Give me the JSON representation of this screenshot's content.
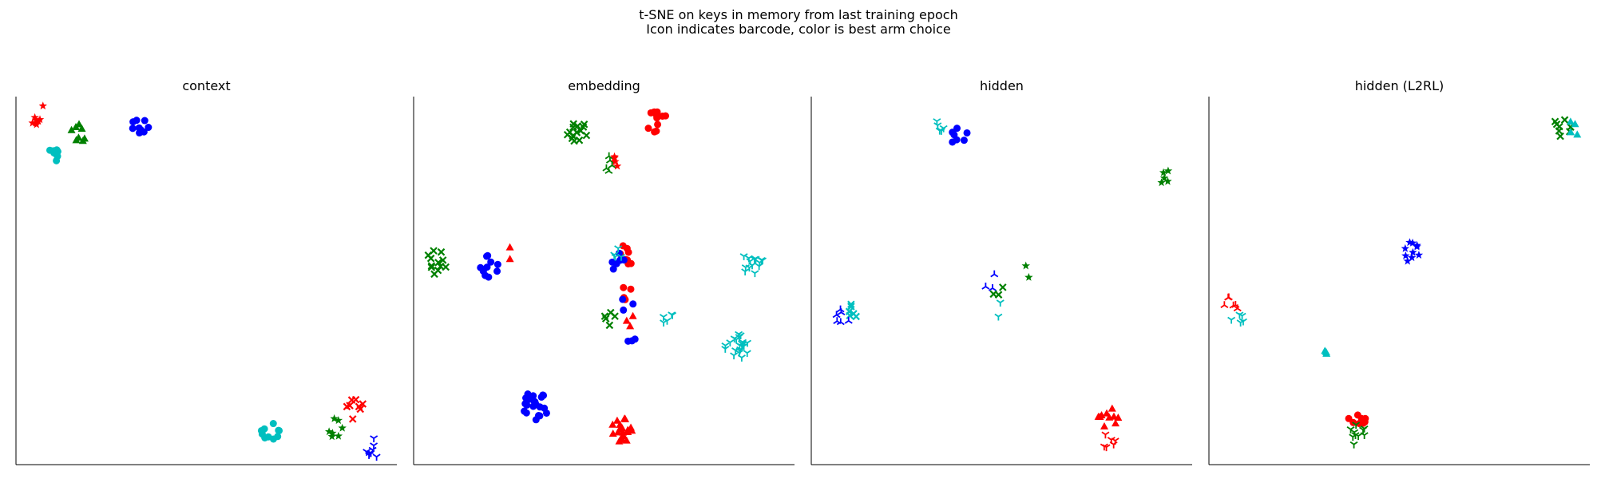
{
  "figure": {
    "title_lines": [
      "t-SNE on keys in memory from last training epoch",
      "Icon indicates barcode, color is best arm choice"
    ]
  },
  "colors": {
    "red": "#ff0000",
    "green": "#008000",
    "blue": "#0000ff",
    "cyan": "#00bfbf"
  },
  "chart_data": [
    {
      "type": "scatter",
      "title": "context",
      "xlabel": "",
      "ylabel": "",
      "xticks": "none",
      "yticks": "none",
      "xlim": [
        0,
        100
      ],
      "ylim": [
        0,
        100
      ],
      "clusters": [
        {
          "x": 6,
          "y": 95,
          "color": "red",
          "marker": "star",
          "count": 8
        },
        {
          "x": 16,
          "y": 90,
          "color": "green",
          "marker": "triangle",
          "count": 8
        },
        {
          "x": 33,
          "y": 92,
          "color": "blue",
          "marker": "circle",
          "count": 10
        },
        {
          "x": 11,
          "y": 84,
          "color": "cyan",
          "marker": "circle",
          "count": 8
        },
        {
          "x": 67,
          "y": 9,
          "color": "cyan",
          "marker": "circle",
          "count": 10
        },
        {
          "x": 84,
          "y": 10,
          "color": "green",
          "marker": "star",
          "count": 7
        },
        {
          "x": 89,
          "y": 15,
          "color": "red",
          "marker": "x",
          "count": 8
        },
        {
          "x": 94,
          "y": 5,
          "color": "blue",
          "marker": "tri_down",
          "count": 8
        }
      ]
    },
    {
      "type": "scatter",
      "title": "embedding",
      "xlabel": "",
      "ylabel": "",
      "xticks": "none",
      "yticks": "none",
      "xlim": [
        0,
        100
      ],
      "ylim": [
        0,
        100
      ],
      "clusters": [
        {
          "x": 43,
          "y": 90,
          "color": "green",
          "marker": "x",
          "count": 14
        },
        {
          "x": 51,
          "y": 82,
          "color": "green",
          "marker": "tri_up",
          "count": 5
        },
        {
          "x": 64,
          "y": 93,
          "color": "red",
          "marker": "circle",
          "count": 12
        },
        {
          "x": 54,
          "y": 83,
          "color": "red",
          "marker": "star",
          "count": 4
        },
        {
          "x": 6,
          "y": 55,
          "color": "green",
          "marker": "x",
          "count": 12
        },
        {
          "x": 20,
          "y": 54,
          "color": "blue",
          "marker": "circle",
          "count": 10
        },
        {
          "x": 25,
          "y": 57,
          "color": "red",
          "marker": "triangle",
          "count": 2
        },
        {
          "x": 56,
          "y": 57,
          "color": "red",
          "marker": "circle",
          "count": 8
        },
        {
          "x": 54,
          "y": 55,
          "color": "blue",
          "marker": "circle",
          "count": 6
        },
        {
          "x": 54,
          "y": 58,
          "color": "cyan",
          "marker": "tri_down",
          "count": 4
        },
        {
          "x": 55,
          "y": 47,
          "color": "red",
          "marker": "circle",
          "count": 4
        },
        {
          "x": 56,
          "y": 44,
          "color": "blue",
          "marker": "circle",
          "count": 3
        },
        {
          "x": 52,
          "y": 40,
          "color": "green",
          "marker": "x",
          "count": 5
        },
        {
          "x": 56,
          "y": 39,
          "color": "red",
          "marker": "triangle",
          "count": 3
        },
        {
          "x": 66,
          "y": 41,
          "color": "cyan",
          "marker": "tri_down",
          "count": 5
        },
        {
          "x": 57,
          "y": 35,
          "color": "blue",
          "marker": "circle",
          "count": 3
        },
        {
          "x": 89,
          "y": 55,
          "color": "cyan",
          "marker": "tri_down",
          "count": 14
        },
        {
          "x": 85,
          "y": 32,
          "color": "cyan",
          "marker": "tri_down",
          "count": 22
        },
        {
          "x": 32,
          "y": 16,
          "color": "blue",
          "marker": "circle",
          "count": 24
        },
        {
          "x": 55,
          "y": 10,
          "color": "red",
          "marker": "triangle",
          "count": 22
        }
      ]
    },
    {
      "type": "scatter",
      "title": "hidden",
      "xlabel": "",
      "ylabel": "",
      "xticks": "none",
      "yticks": "none",
      "xlim": [
        0,
        100
      ],
      "ylim": [
        0,
        100
      ],
      "clusters": [
        {
          "x": 34,
          "y": 91,
          "color": "cyan",
          "marker": "tri_down",
          "count": 5
        },
        {
          "x": 39,
          "y": 89,
          "color": "blue",
          "marker": "circle",
          "count": 7
        },
        {
          "x": 93,
          "y": 78,
          "color": "green",
          "marker": "star",
          "count": 5
        },
        {
          "x": 47,
          "y": 50,
          "color": "blue",
          "marker": "tri_up",
          "count": 3
        },
        {
          "x": 49,
          "y": 47,
          "color": "green",
          "marker": "x",
          "count": 3
        },
        {
          "x": 56,
          "y": 52,
          "color": "green",
          "marker": "star",
          "count": 2
        },
        {
          "x": 50,
          "y": 42,
          "color": "cyan",
          "marker": "tri_down",
          "count": 2
        },
        {
          "x": 10,
          "y": 42,
          "color": "cyan",
          "marker": "x",
          "count": 6
        },
        {
          "x": 8,
          "y": 40,
          "color": "blue",
          "marker": "tri_up",
          "count": 6
        },
        {
          "x": 78,
          "y": 13,
          "color": "red",
          "marker": "triangle",
          "count": 10
        },
        {
          "x": 78,
          "y": 7,
          "color": "red",
          "marker": "tri_down",
          "count": 6
        }
      ]
    },
    {
      "type": "scatter",
      "title": "hidden (L2RL)",
      "xlabel": "",
      "ylabel": "",
      "xticks": "none",
      "yticks": "none",
      "xlim": [
        0,
        100
      ],
      "ylim": [
        0,
        100
      ],
      "clusters": [
        {
          "x": 93,
          "y": 92,
          "color": "green",
          "marker": "x",
          "count": 8
        },
        {
          "x": 95,
          "y": 91,
          "color": "cyan",
          "marker": "triangle",
          "count": 4
        },
        {
          "x": 53,
          "y": 58,
          "color": "blue",
          "marker": "star",
          "count": 10
        },
        {
          "x": 6,
          "y": 44,
          "color": "red",
          "marker": "tri_up",
          "count": 6
        },
        {
          "x": 8,
          "y": 40,
          "color": "cyan",
          "marker": "tri_down",
          "count": 5
        },
        {
          "x": 31,
          "y": 32,
          "color": "cyan",
          "marker": "triangle",
          "count": 3
        },
        {
          "x": 39,
          "y": 13,
          "color": "red",
          "marker": "circle",
          "count": 8
        },
        {
          "x": 39,
          "y": 8,
          "color": "green",
          "marker": "tri_down",
          "count": 10
        }
      ]
    }
  ]
}
